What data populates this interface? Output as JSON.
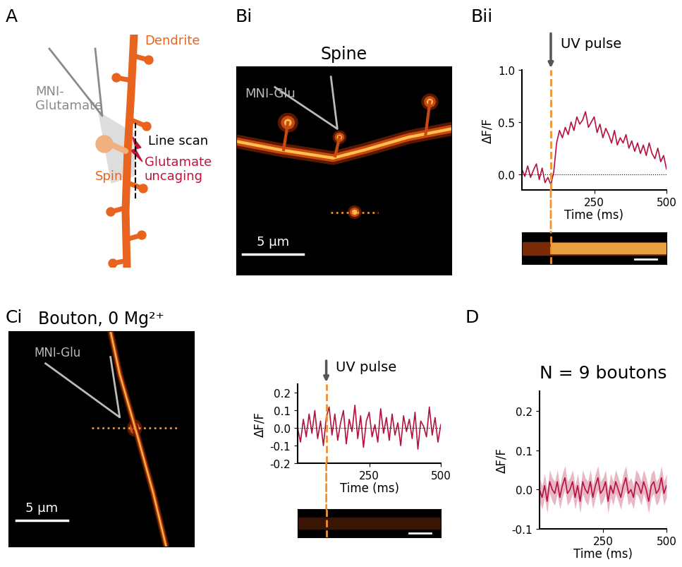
{
  "panel_labels": [
    "A",
    "Bi",
    "Bii",
    "Ci",
    "D"
  ],
  "diagram": {
    "dendrite": "Dendrite",
    "pipette": "MNI-\nGlutamate",
    "spine": "Spine",
    "line_scan": "Line scan",
    "uncaging": "Glutamate\nuncaging"
  },
  "images": [
    {
      "title": "Spine",
      "pipette": "MNI-Glu",
      "scale_bar": "5 µm"
    },
    {
      "title": "Bouton, 0 Mg²⁺",
      "pipette": "MNI-Glu",
      "scale_bar": "5 µm"
    }
  ],
  "chart_data": [
    {
      "type": "line",
      "x_label": "Time (ms)",
      "y_label": "ΔF/F",
      "annotation": {
        "text": "UV pulse",
        "x": 100
      },
      "baseline": 0,
      "x": [
        0,
        10,
        20,
        30,
        40,
        50,
        60,
        70,
        80,
        90,
        100,
        110,
        120,
        130,
        140,
        150,
        160,
        170,
        180,
        190,
        200,
        210,
        220,
        230,
        240,
        250,
        260,
        270,
        280,
        290,
        300,
        310,
        320,
        330,
        340,
        350,
        360,
        370,
        380,
        390,
        400,
        410,
        420,
        430,
        440,
        450,
        460,
        470,
        480,
        490,
        500
      ],
      "series": [
        {
          "color": "#b5123f",
          "values": [
            0.05,
            -0.02,
            0.08,
            -0.03,
            0.04,
            0.1,
            -0.05,
            0.06,
            -0.08,
            -0.03,
            -0.1,
            0.02,
            0.3,
            0.42,
            0.35,
            0.45,
            0.38,
            0.5,
            0.42,
            0.55,
            0.48,
            0.52,
            0.6,
            0.45,
            0.5,
            0.55,
            0.4,
            0.48,
            0.35,
            0.44,
            0.38,
            0.3,
            0.42,
            0.28,
            0.35,
            0.3,
            0.38,
            0.25,
            0.32,
            0.22,
            0.3,
            0.2,
            0.28,
            0.18,
            0.3,
            0.2,
            0.15,
            0.25,
            0.12,
            0.18,
            0.05
          ]
        }
      ],
      "xlim": [
        0,
        500
      ],
      "xticks": [
        250,
        500
      ],
      "ylim": [
        -0.15,
        1.0
      ],
      "yticks": [
        {
          "value": 0,
          "label": "0.0"
        },
        {
          "value": 0.5,
          "label": "0.5"
        },
        {
          "value": 1.0,
          "label": "1.0"
        }
      ]
    },
    {
      "type": "line",
      "x_label": "Time (ms)",
      "y_label": "ΔF/F",
      "annotation": {
        "text": "UV pulse",
        "x": 100
      },
      "baseline": 0,
      "x": [
        0,
        10,
        20,
        30,
        40,
        50,
        60,
        70,
        80,
        90,
        100,
        110,
        120,
        130,
        140,
        150,
        160,
        170,
        180,
        190,
        200,
        210,
        220,
        230,
        240,
        250,
        260,
        270,
        280,
        290,
        300,
        310,
        320,
        330,
        340,
        350,
        360,
        370,
        380,
        390,
        400,
        410,
        420,
        430,
        440,
        450,
        460,
        470,
        480,
        490,
        500
      ],
      "series": [
        {
          "color": "#b5123f",
          "values": [
            0.0,
            -0.08,
            0.05,
            -0.05,
            0.08,
            -0.03,
            0.1,
            -0.06,
            0.04,
            -0.1,
            0.06,
            0.12,
            -0.04,
            0.08,
            -0.07,
            0.03,
            0.1,
            -0.09,
            0.05,
            -0.02,
            0.13,
            -0.06,
            0.07,
            -0.11,
            0.04,
            0.09,
            -0.05,
            0.02,
            -0.08,
            0.11,
            -0.03,
            0.06,
            -0.07,
            0.08,
            -0.04,
            0.03,
            -0.1,
            0.07,
            -0.02,
            0.05,
            -0.06,
            0.09,
            -0.12,
            0.04,
            0.01,
            -0.05,
            0.12,
            -0.04,
            0.06,
            -0.08,
            0.02
          ]
        }
      ],
      "xlim": [
        0,
        500
      ],
      "xticks": [
        250,
        500
      ],
      "ylim": [
        -0.2,
        0.25
      ],
      "yticks": [
        {
          "value": -0.2,
          "label": "-0.2"
        },
        {
          "value": -0.1,
          "label": "-0.1"
        },
        {
          "value": 0,
          "label": "0.0"
        },
        {
          "value": 0.1,
          "label": "0.1"
        },
        {
          "value": 0.2,
          "label": "0.2"
        }
      ]
    },
    {
      "type": "line",
      "title": "N = 9 boutons",
      "x_label": "Time (ms)",
      "y_label": "ΔF/F",
      "x": [
        0,
        10,
        20,
        30,
        40,
        50,
        60,
        70,
        80,
        90,
        100,
        110,
        120,
        130,
        140,
        150,
        160,
        170,
        180,
        190,
        200,
        210,
        220,
        230,
        240,
        250,
        260,
        270,
        280,
        290,
        300,
        310,
        320,
        330,
        340,
        350,
        360,
        370,
        380,
        390,
        400,
        410,
        420,
        430,
        440,
        450,
        460,
        470,
        480,
        490,
        500
      ],
      "series": [
        {
          "color": "#b5123f",
          "values": [
            0.0,
            -0.02,
            0.01,
            -0.03,
            0.02,
            0.0,
            -0.01,
            0.02,
            -0.02,
            0.01,
            0.03,
            -0.01,
            0.0,
            0.02,
            -0.02,
            0.01,
            -0.03,
            0.02,
            0.0,
            -0.01,
            0.02,
            -0.02,
            0.01,
            0.03,
            -0.01,
            0.0,
            0.02,
            -0.03,
            0.01,
            -0.01,
            0.02,
            0.0,
            -0.02,
            0.01,
            0.03,
            -0.01,
            0.0,
            -0.02,
            0.02,
            0.01,
            -0.01,
            0.02,
            0.0,
            -0.03,
            0.01,
            0.02,
            -0.01,
            0.0,
            0.03,
            -0.01,
            0.01
          ],
          "error": [
            0.03,
            0.03,
            0.03,
            0.03,
            0.03,
            0.03,
            0.03,
            0.03,
            0.03,
            0.03,
            0.03,
            0.03,
            0.03,
            0.03,
            0.03,
            0.03,
            0.03,
            0.03,
            0.03,
            0.03,
            0.03,
            0.03,
            0.03,
            0.03,
            0.03,
            0.03,
            0.03,
            0.03,
            0.03,
            0.03,
            0.03,
            0.03,
            0.03,
            0.03,
            0.03,
            0.03,
            0.03,
            0.03,
            0.03,
            0.03,
            0.03,
            0.03,
            0.03,
            0.03,
            0.03,
            0.03,
            0.03,
            0.03,
            0.03,
            0.03,
            0.03
          ]
        }
      ],
      "xlim": [
        0,
        500
      ],
      "xticks": [
        250,
        500
      ],
      "ylim": [
        -0.1,
        0.25
      ],
      "yticks": [
        {
          "value": -0.1,
          "label": "-0.1"
        },
        {
          "value": 0,
          "label": "0.0"
        },
        {
          "value": 0.1,
          "label": "0.1"
        },
        {
          "value": 0.2,
          "label": "0.2"
        }
      ]
    }
  ]
}
